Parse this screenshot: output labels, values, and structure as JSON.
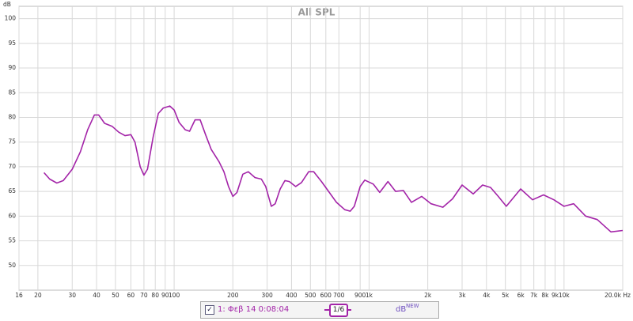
{
  "chart_data": {
    "type": "line",
    "title": "All SPL",
    "y_label": "dB",
    "x": [
      21.5,
      23,
      25,
      27,
      30,
      33,
      36,
      39,
      41,
      44,
      48,
      52,
      56,
      60,
      63,
      67,
      70,
      73,
      78,
      83,
      88,
      95,
      100,
      106,
      114,
      120,
      128,
      136,
      145,
      155,
      170,
      180,
      190,
      200,
      210,
      225,
      240,
      260,
      280,
      295,
      315,
      330,
      350,
      370,
      390,
      420,
      450,
      490,
      520,
      570,
      620,
      680,
      750,
      800,
      840,
      900,
      950,
      1050,
      1134,
      1250,
      1368,
      1500,
      1650,
      1860,
      2080,
      2390,
      2680,
      3000,
      3420,
      3820,
      4200,
      4600,
      5060,
      5990,
      6890,
      7850,
      8870,
      10000,
      11200,
      12900,
      14800,
      17400,
      20000
    ],
    "series": [
      {
        "name": "1: Φεβ 14 0:08:04",
        "color": "#a324a8",
        "values": [
          68.8,
          67.5,
          66.7,
          67.2,
          69.5,
          73,
          77.5,
          80.5,
          80.5,
          78.8,
          78.2,
          77,
          76.3,
          76.5,
          75,
          70,
          68.3,
          69.5,
          76,
          80.8,
          81.9,
          82.3,
          81.5,
          79,
          77.5,
          77.2,
          79.5,
          79.5,
          76.5,
          73.5,
          71,
          69,
          66,
          64,
          64.8,
          68.5,
          69,
          67.8,
          67.5,
          66,
          62,
          62.5,
          65.5,
          67.2,
          67,
          66,
          66.8,
          69,
          69,
          67,
          65,
          62.8,
          61.3,
          61,
          62,
          66,
          67.3,
          66.5,
          64.8,
          67,
          65,
          65.2,
          62.8,
          64,
          62.5,
          61.8,
          63.5,
          66.3,
          64.5,
          66.3,
          65.8,
          64,
          62,
          65.5,
          63.3,
          64.3,
          63.3,
          62,
          62.5,
          60,
          59.3,
          56.8,
          57.1
        ]
      }
    ],
    "smoothing": "1/6",
    "units": "dB",
    "units_badge": "NEW",
    "log_x": true,
    "grid": true,
    "xlim": [
      16,
      20000
    ],
    "ylim": [
      45,
      102.5
    ],
    "xticks": [
      16,
      20,
      30,
      40,
      50,
      60,
      70,
      80,
      90,
      100,
      200,
      300,
      400,
      500,
      600,
      700,
      {
        "value": 900,
        "label": "900"
      },
      {
        "value": 1000,
        "label": "1k"
      },
      {
        "value": 2000,
        "label": "2k"
      },
      {
        "value": 3000,
        "label": "3k"
      },
      {
        "value": 4000,
        "label": "4k"
      },
      {
        "value": 5000,
        "label": "5k"
      },
      {
        "value": 6000,
        "label": "6k"
      },
      {
        "value": 7000,
        "label": "7k"
      },
      {
        "value": 8000,
        "label": "8k"
      },
      {
        "value": 9000,
        "label": "9k"
      },
      {
        "value": 10000,
        "label": "10k"
      },
      {
        "value": 20000,
        "label": "20.0k Hz"
      }
    ],
    "yticks": [
      50,
      55,
      60,
      65,
      70,
      75,
      80,
      85,
      90,
      95,
      100
    ]
  }
}
